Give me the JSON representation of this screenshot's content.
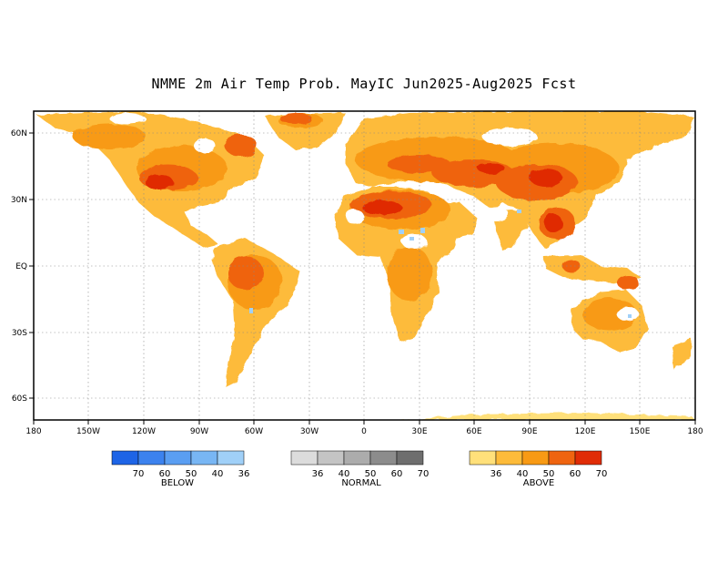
{
  "title": "NMME 2m Air Temp Prob. MayIC  Jun2025-Aug2025 Fcst",
  "axes": {
    "x_labels": [
      "180",
      "150W",
      "120W",
      "90W",
      "60W",
      "30W",
      "0",
      "30E",
      "60E",
      "90E",
      "120E",
      "150E",
      "180"
    ],
    "y_labels": [
      "60N",
      "30N",
      "EQ",
      "30S",
      "60S"
    ]
  },
  "legend": {
    "below": {
      "title": "BELOW",
      "colors": [
        "#1e64e6",
        "#3c82ee",
        "#5a9ef2",
        "#78b6f4",
        "#a0d0f8"
      ],
      "labels": [
        "70",
        "60",
        "50",
        "40",
        "36"
      ]
    },
    "normal": {
      "title": "NORMAL",
      "colors": [
        "#dcdcdc",
        "#c4c4c4",
        "#acacac",
        "#8c8c8c",
        "#6e6e6e"
      ],
      "labels": [
        "36",
        "40",
        "50",
        "60",
        "70"
      ]
    },
    "above": {
      "title": "ABOVE",
      "colors": [
        "#ffe07a",
        "#fdbb3a",
        "#f89a14",
        "#ef6410",
        "#e02c06"
      ],
      "labels": [
        "36",
        "40",
        "50",
        "60",
        "70"
      ]
    }
  }
}
